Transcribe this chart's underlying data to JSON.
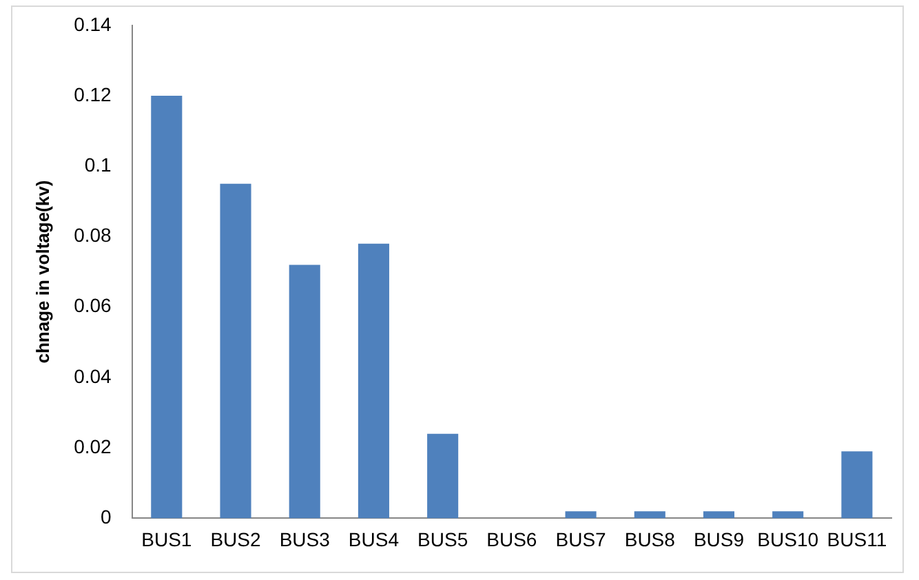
{
  "chart_data": {
    "type": "bar",
    "ylabel": "chnage in voltage(kv)",
    "categories": [
      "BUS1",
      "BUS2",
      "BUS3",
      "BUS4",
      "BUS5",
      "BUS6",
      "BUS7",
      "BUS8",
      "BUS9",
      "BUS10",
      "BUS11"
    ],
    "values": [
      0.12,
      0.095,
      0.072,
      0.078,
      0.024,
      0,
      0.002,
      0.002,
      0.002,
      0.002,
      0.019
    ],
    "color": "#4f81bd",
    "ylim": [
      0,
      0.14
    ],
    "yticks": [
      0,
      0.02,
      0.04,
      0.06,
      0.08,
      0.1,
      0.12,
      0.14
    ],
    "grid": false,
    "legend": false
  }
}
